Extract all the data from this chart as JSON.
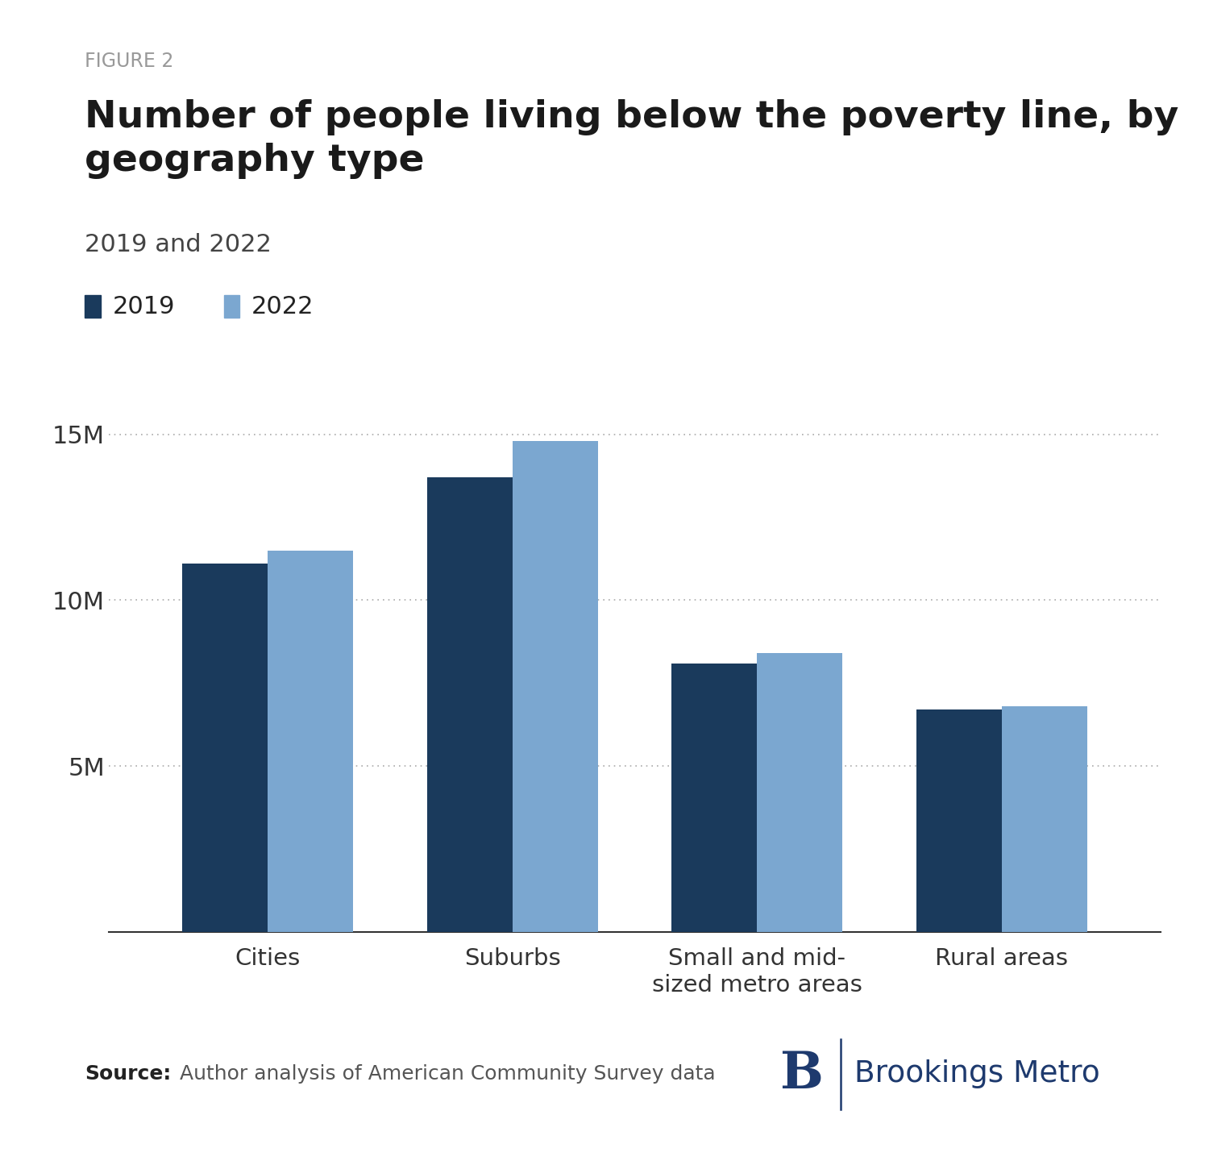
{
  "figure_label": "FIGURE 2",
  "title": "Number of people living below the poverty line, by\ngeography type",
  "subtitle": "2019 and 2022",
  "categories": [
    "Cities",
    "Suburbs",
    "Small and mid-\nsized metro areas",
    "Rural areas"
  ],
  "values_2019": [
    11100000,
    13700000,
    8100000,
    6700000
  ],
  "values_2022": [
    11500000,
    14800000,
    8400000,
    6800000
  ],
  "color_2019": "#1a3a5c",
  "color_2022": "#7ba7d0",
  "ylim": [
    0,
    16500000
  ],
  "yticks": [
    0,
    5000000,
    10000000,
    15000000
  ],
  "ytick_labels": [
    "",
    "5M",
    "10M",
    "15M"
  ],
  "source_bold": "Source:",
  "source_text": " Author analysis of American Community Survey data",
  "figure_label_color": "#999999",
  "title_color": "#1a1a1a",
  "subtitle_color": "#444444",
  "bar_width": 0.35,
  "brookings_color": "#1e3a6e"
}
